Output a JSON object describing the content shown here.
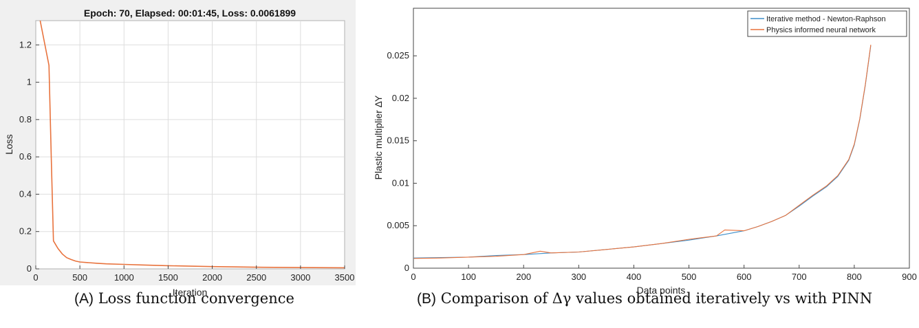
{
  "captions": {
    "a": {
      "tag": "(A)",
      "text": "Loss function convergence"
    },
    "b": {
      "tag": "(B)",
      "text": "Comparison of Δγ values obtained iteratively vs with PINN"
    }
  },
  "colors": {
    "panel_a_bg": "#f0f0f0",
    "grid": "#dddddd",
    "series_blue": "#3d8ec9",
    "series_orange": "#e8723c"
  },
  "chart_data": [
    {
      "type": "line",
      "title": "Epoch: 70, Elapsed: 00:01:45, Loss: 0.0061899",
      "xlabel": "Iteration",
      "ylabel": "Loss",
      "xlim": [
        0,
        3500
      ],
      "ylim": [
        0,
        1.33
      ],
      "grid": true,
      "xticks": [
        0,
        500,
        1000,
        1500,
        2000,
        2500,
        3000,
        3500
      ],
      "yticks": [
        0,
        0.2,
        0.4,
        0.6,
        0.8,
        1,
        1.2
      ],
      "ytick_labels": [
        "0",
        "0.2",
        "0.4",
        "0.6",
        "0.8",
        "1",
        "1.2"
      ],
      "series": [
        {
          "name": "",
          "color": "#e8723c",
          "x": [
            50,
            100,
            150,
            175,
            200,
            250,
            300,
            350,
            400,
            450,
            500,
            600,
            700,
            800,
            1000,
            1200,
            1500,
            2000,
            2500,
            3000,
            3500
          ],
          "y": [
            1.33,
            1.21,
            1.09,
            0.6,
            0.15,
            0.11,
            0.08,
            0.06,
            0.05,
            0.042,
            0.037,
            0.033,
            0.03,
            0.027,
            0.024,
            0.021,
            0.017,
            0.012,
            0.009,
            0.007,
            0.006
          ]
        }
      ]
    },
    {
      "type": "line",
      "title": "",
      "xlabel": "Data points",
      "ylabel": "Plastic multiplier ΔΥ",
      "xlim": [
        0,
        900
      ],
      "ylim": [
        0,
        0.0306
      ],
      "grid": false,
      "legend": "top-right",
      "xticks": [
        0,
        100,
        200,
        300,
        400,
        500,
        600,
        700,
        800,
        900
      ],
      "yticks": [
        0,
        0.005,
        0.01,
        0.015,
        0.02,
        0.025
      ],
      "ytick_labels": [
        "0",
        "0.005",
        "0.01",
        "0.015",
        "0.02",
        "0.025"
      ],
      "series": [
        {
          "name": "Iterative method - Newton-Raphson",
          "color": "#3d8ec9",
          "x": [
            1,
            50,
            100,
            150,
            200,
            250,
            300,
            350,
            400,
            450,
            500,
            550,
            600,
            625,
            650,
            675,
            700,
            725,
            750,
            770,
            790,
            800,
            810,
            820,
            830
          ],
          "y": [
            0.0012,
            0.00125,
            0.0013,
            0.0015,
            0.0016,
            0.0018,
            0.0019,
            0.0022,
            0.0025,
            0.0029,
            0.0033,
            0.0038,
            0.0044,
            0.0049,
            0.0055,
            0.0062,
            0.0073,
            0.0085,
            0.0096,
            0.0108,
            0.0127,
            0.0145,
            0.0175,
            0.0215,
            0.0262
          ]
        },
        {
          "name": "Physics informed neural network",
          "color": "#e8723c",
          "x": [
            1,
            50,
            100,
            150,
            200,
            230,
            250,
            300,
            350,
            400,
            450,
            500,
            550,
            565,
            600,
            625,
            650,
            675,
            700,
            725,
            750,
            770,
            790,
            800,
            810,
            820,
            830
          ],
          "y": [
            0.00115,
            0.0012,
            0.0013,
            0.0014,
            0.0016,
            0.002,
            0.0018,
            0.0019,
            0.0022,
            0.0025,
            0.0029,
            0.0034,
            0.0038,
            0.0045,
            0.0044,
            0.0049,
            0.0055,
            0.0062,
            0.0074,
            0.0086,
            0.0097,
            0.0109,
            0.0128,
            0.0146,
            0.0176,
            0.0216,
            0.0263
          ]
        }
      ]
    }
  ]
}
